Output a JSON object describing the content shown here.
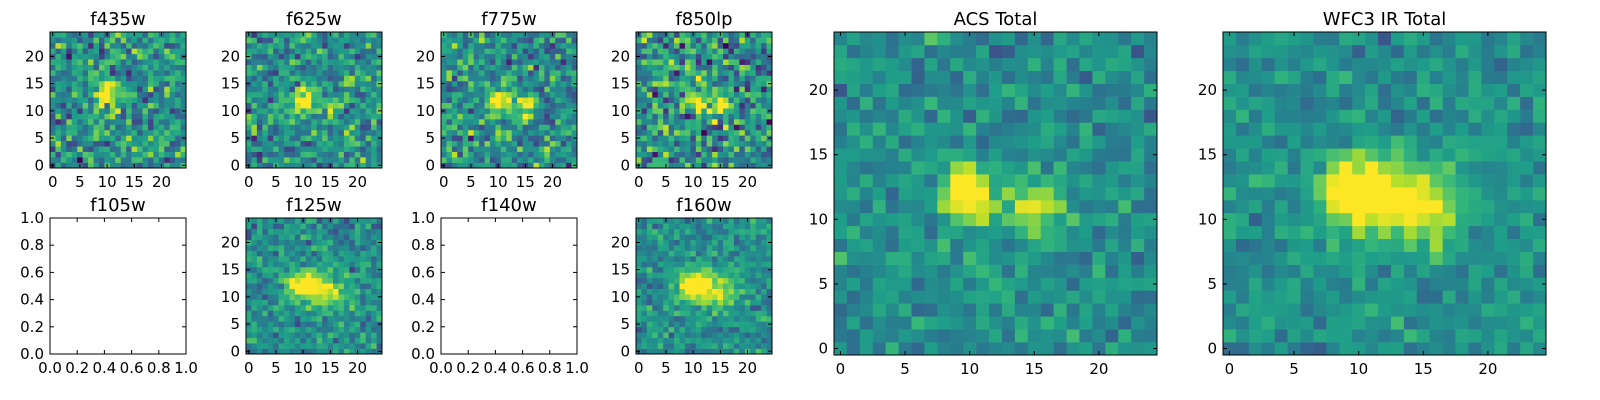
{
  "chart_data": [
    {
      "type": "heatmap",
      "title": "f435w",
      "xlim": [
        -0.5,
        24.5
      ],
      "ylim": [
        -0.5,
        24.5
      ],
      "xticks": [
        0,
        5,
        10,
        15,
        20
      ],
      "yticks": [
        0,
        5,
        10,
        15,
        20
      ],
      "colormap": "viridis",
      "grid_size": 25,
      "sources": [
        {
          "x": 10,
          "y": 13,
          "strength": 0.7,
          "sigma": 1.4
        }
      ],
      "noise": 0.33,
      "seed": 11
    },
    {
      "type": "heatmap",
      "title": "f625w",
      "xlim": [
        -0.5,
        24.5
      ],
      "ylim": [
        -0.5,
        24.5
      ],
      "xticks": [
        0,
        5,
        10,
        15,
        20
      ],
      "yticks": [
        0,
        5,
        10,
        15,
        20
      ],
      "colormap": "viridis",
      "grid_size": 25,
      "sources": [
        {
          "x": 10,
          "y": 12,
          "strength": 0.7,
          "sigma": 1.5
        },
        {
          "x": 15,
          "y": 11,
          "strength": 0.4,
          "sigma": 1.3
        }
      ],
      "noise": 0.3,
      "seed": 23
    },
    {
      "type": "heatmap",
      "title": "f775w",
      "xlim": [
        -0.5,
        24.5
      ],
      "ylim": [
        -0.5,
        24.5
      ],
      "xticks": [
        0,
        5,
        10,
        15,
        20
      ],
      "yticks": [
        0,
        5,
        10,
        15,
        20
      ],
      "colormap": "viridis",
      "grid_size": 25,
      "sources": [
        {
          "x": 10,
          "y": 12,
          "strength": 0.6,
          "sigma": 1.5
        },
        {
          "x": 15,
          "y": 11,
          "strength": 0.5,
          "sigma": 1.4
        }
      ],
      "noise": 0.32,
      "seed": 37
    },
    {
      "type": "heatmap",
      "title": "f850lp",
      "xlim": [
        -0.5,
        24.5
      ],
      "ylim": [
        -0.5,
        24.5
      ],
      "xticks": [
        0,
        5,
        10,
        15,
        20
      ],
      "yticks": [
        0,
        5,
        10,
        15,
        20
      ],
      "colormap": "viridis",
      "grid_size": 25,
      "sources": [
        {
          "x": 10,
          "y": 12,
          "strength": 0.5,
          "sigma": 1.5
        },
        {
          "x": 15,
          "y": 11,
          "strength": 0.45,
          "sigma": 1.4
        }
      ],
      "noise": 0.38,
      "seed": 41
    },
    {
      "type": "heatmap",
      "title": "f105w",
      "empty": true,
      "xlim": [
        0.0,
        1.0
      ],
      "ylim": [
        0.0,
        1.0
      ],
      "xticks": [
        0.0,
        0.2,
        0.4,
        0.6,
        0.8,
        1.0
      ],
      "yticks": [
        0.0,
        0.2,
        0.4,
        0.6,
        0.8,
        1.0
      ],
      "xticklabels": [
        "0.0",
        "0.2",
        "0.4",
        "0.6",
        "0.8",
        "1.0"
      ],
      "yticklabels": [
        "0.0",
        "0.2",
        "0.4",
        "0.6",
        "0.8",
        "1.0"
      ]
    },
    {
      "type": "heatmap",
      "title": "f125w",
      "xlim": [
        -0.5,
        24.5
      ],
      "ylim": [
        -0.5,
        24.5
      ],
      "xticks": [
        0,
        5,
        10,
        15,
        20
      ],
      "yticks": [
        0,
        5,
        10,
        15,
        20
      ],
      "colormap": "viridis",
      "grid_size": 25,
      "sources": [
        {
          "x": 10,
          "y": 12,
          "strength": 0.65,
          "sigma": 2.0
        },
        {
          "x": 15,
          "y": 11,
          "strength": 0.4,
          "sigma": 2.2
        }
      ],
      "noise": 0.22,
      "seed": 53
    },
    {
      "type": "heatmap",
      "title": "f140w",
      "empty": true,
      "xlim": [
        0.0,
        1.0
      ],
      "ylim": [
        0.0,
        1.0
      ],
      "xticks": [
        0.0,
        0.2,
        0.4,
        0.6,
        0.8,
        1.0
      ],
      "yticks": [
        0.0,
        0.2,
        0.4,
        0.6,
        0.8,
        1.0
      ],
      "xticklabels": [
        "0.0",
        "0.2",
        "0.4",
        "0.6",
        "0.8",
        "1.0"
      ],
      "yticklabels": [
        "0.0",
        "0.2",
        "0.4",
        "0.6",
        "0.8",
        "1.0"
      ]
    },
    {
      "type": "heatmap",
      "title": "f160w",
      "xlim": [
        -0.5,
        24.5
      ],
      "ylim": [
        -0.5,
        24.5
      ],
      "xticks": [
        0,
        5,
        10,
        15,
        20
      ],
      "yticks": [
        0,
        5,
        10,
        15,
        20
      ],
      "colormap": "viridis",
      "grid_size": 25,
      "sources": [
        {
          "x": 10,
          "y": 12,
          "strength": 0.75,
          "sigma": 2.0
        },
        {
          "x": 15,
          "y": 11,
          "strength": 0.45,
          "sigma": 2.2
        }
      ],
      "noise": 0.2,
      "seed": 67
    },
    {
      "type": "heatmap",
      "title": "ACS Total",
      "xlim": [
        -0.5,
        24.5
      ],
      "ylim": [
        -0.5,
        24.5
      ],
      "xticks": [
        0,
        5,
        10,
        15,
        20
      ],
      "yticks": [
        0,
        5,
        10,
        15,
        20
      ],
      "colormap": "viridis",
      "grid_size": 25,
      "sources": [
        {
          "x": 10,
          "y": 12,
          "strength": 0.75,
          "sigma": 1.3
        },
        {
          "x": 15,
          "y": 11,
          "strength": 0.55,
          "sigma": 1.3
        }
      ],
      "noise": 0.18,
      "seed": 79
    },
    {
      "type": "heatmap",
      "title": "WFC3 IR Total",
      "xlim": [
        -0.5,
        24.5
      ],
      "ylim": [
        -0.5,
        24.5
      ],
      "xticks": [
        0,
        5,
        10,
        15,
        20
      ],
      "yticks": [
        0,
        5,
        10,
        15,
        20
      ],
      "colormap": "viridis",
      "grid_size": 25,
      "sources": [
        {
          "x": 10,
          "y": 12,
          "strength": 0.8,
          "sigma": 1.9
        },
        {
          "x": 15,
          "y": 11,
          "strength": 0.55,
          "sigma": 2.0
        }
      ],
      "noise": 0.15,
      "seed": 97
    }
  ]
}
